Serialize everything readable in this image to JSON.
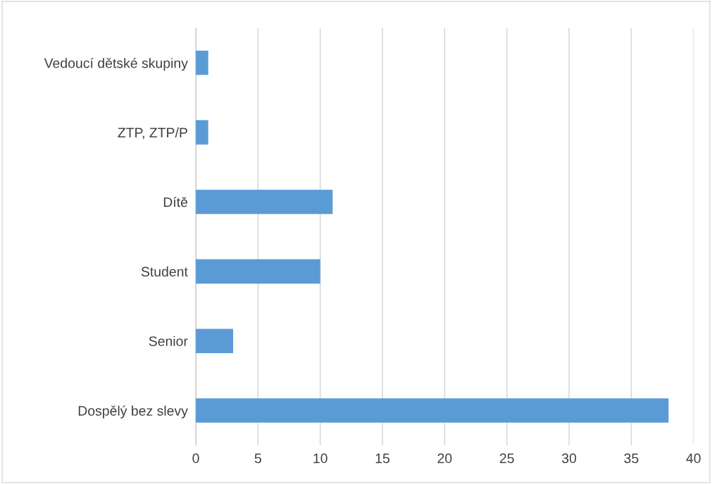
{
  "chart_data": {
    "type": "bar",
    "orientation": "horizontal",
    "categories": [
      "Vedoucí dětské skupiny",
      "ZTP, ZTP/P",
      "Dítě",
      "Student",
      "Senior",
      "Dospělý bez slevy"
    ],
    "values": [
      1,
      1,
      11,
      10,
      3,
      38
    ],
    "color": "#5b9bd5",
    "xlim": [
      0,
      40
    ],
    "xticks": [
      0,
      5,
      10,
      15,
      20,
      25,
      30,
      35,
      40
    ],
    "grid": "x"
  }
}
